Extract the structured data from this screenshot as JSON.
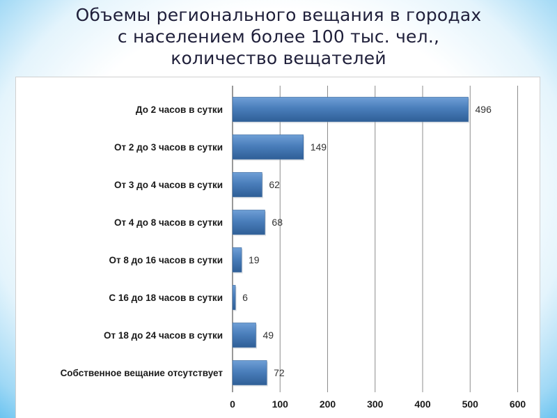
{
  "slide": {
    "title_lines": [
      "Объемы регионального вещания в городах",
      "с населением более 100 тыс. чел.,",
      "количество вещателей"
    ]
  },
  "chart_data": {
    "type": "bar",
    "orientation": "horizontal",
    "categories": [
      "До 2 часов в сутки",
      "От 2 до 3 часов в сутки",
      "От 3 до 4 часов в сутки",
      "От 4 до 8 часов в сутки",
      "От 8 до 16 часов в сутки",
      "С 16 до 18 часов в сутки",
      "От 18 до 24 часов в сутки",
      "Собственное вещание отсутствует"
    ],
    "values": [
      496,
      149,
      62,
      68,
      19,
      6,
      49,
      72
    ],
    "value_labels": [
      "496",
      "149",
      "62",
      "68",
      "19",
      "6",
      "49",
      "72"
    ],
    "x_ticks": [
      "0",
      "100",
      "200",
      "300",
      "400",
      "500",
      "600"
    ],
    "xlim": [
      0,
      600
    ],
    "grid": "vertical",
    "legend": "none",
    "colors": {
      "bar": "#4a7ebb",
      "bar_dark": "#2f5f97",
      "bar_light": "#6f9fd6",
      "grid": "#8c8c8c"
    }
  }
}
